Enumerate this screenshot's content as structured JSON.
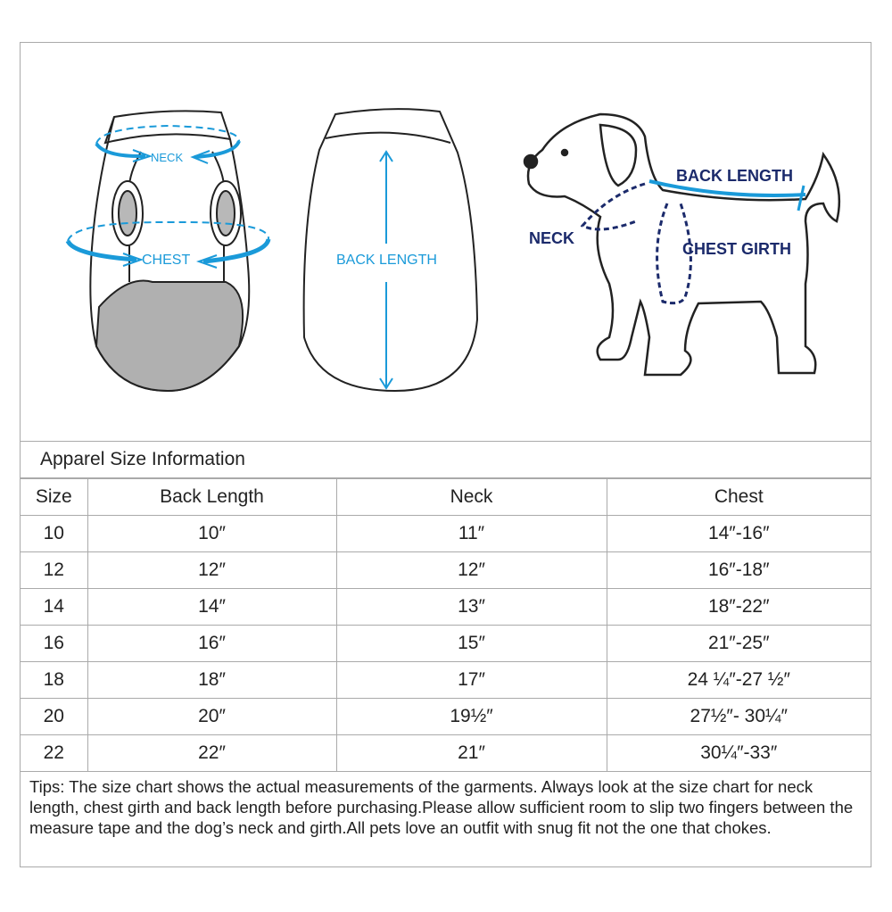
{
  "illustration": {
    "front_labels": {
      "neck": "NECK",
      "chest": "CHEST"
    },
    "back_label": "BACK LENGTH",
    "dog_labels": {
      "back_length": "BACK LENGTH",
      "neck": "NECK",
      "chest_girth": "CHEST GIRTH"
    },
    "colors": {
      "garment_arrow": "#1a9ad9",
      "dog_label": "#1b2a6b",
      "dog_arrow": "#1a9ad9",
      "panel_gray": "#b0b0b0"
    }
  },
  "table": {
    "title": "Apparel Size Information",
    "headers": [
      "Size",
      "Back Length",
      "Neck",
      "Chest"
    ],
    "rows": [
      [
        "10",
        "10″",
        "11″",
        "14″-16″"
      ],
      [
        "12",
        "12″",
        "12″",
        "16″-18″"
      ],
      [
        "14",
        "14″",
        "13″",
        "18″-22″"
      ],
      [
        "16",
        "16″",
        "15″",
        "21″-25″"
      ],
      [
        "18",
        "18″",
        "17″",
        "24 ¼″-27 ½″"
      ],
      [
        "20",
        "20″",
        "19½″",
        "27½″- 30¼″"
      ],
      [
        "22",
        "22″",
        "21″",
        "30¼″-33″"
      ]
    ]
  },
  "tips": "Tips:  The size chart shows the actual measurements of the  garments.  Always look at the size chart for neck length, chest girth and back length before purchasing.Please allow sufficient room to slip two fingers between the measure tape and the dog’s neck and girth.All pets love an outfit with snug fit not the one that chokes."
}
